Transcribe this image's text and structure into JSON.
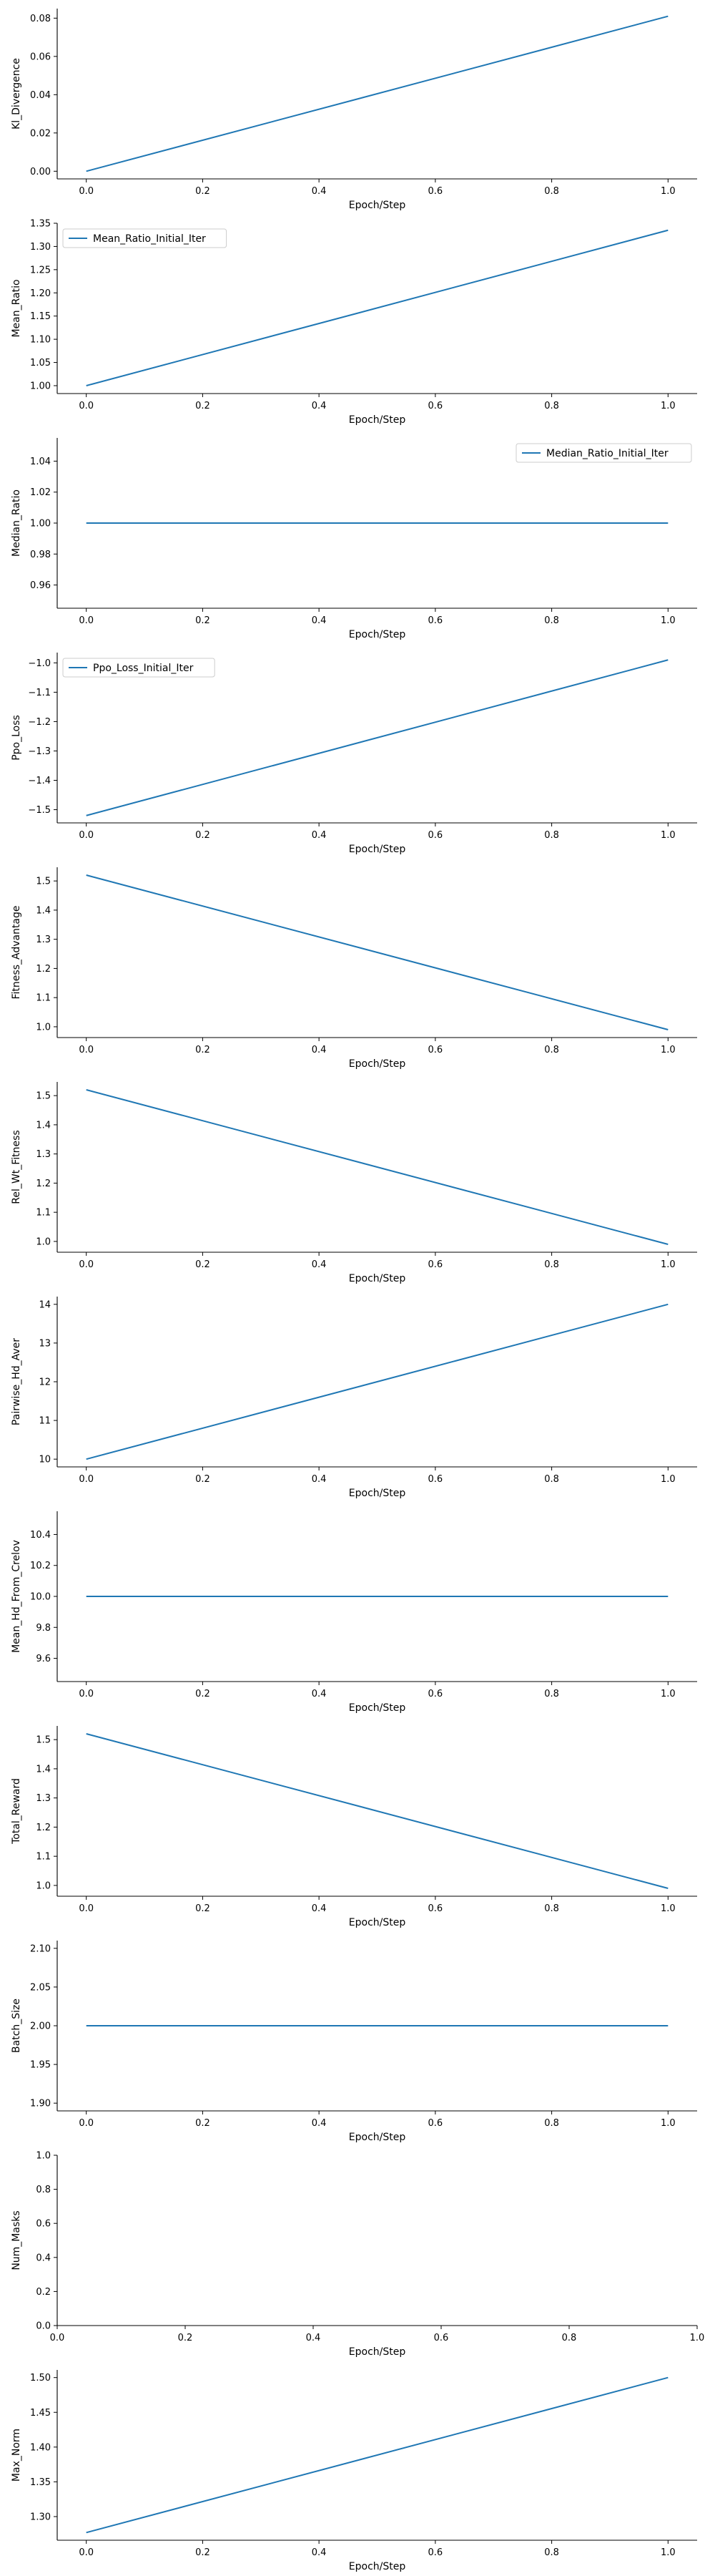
{
  "colors": {
    "line": "#1f77b4",
    "axis": "#000000",
    "background": "#ffffff",
    "legend_border": "#cccccc"
  },
  "chart_data": [
    {
      "type": "line",
      "xlabel": "Epoch/Step",
      "ylabel": "Kl_Divergence",
      "xlim": [
        -0.05,
        1.05
      ],
      "ylim": [
        -0.004,
        0.085
      ],
      "xticks": [
        0.0,
        0.2,
        0.4,
        0.6,
        0.8,
        1.0
      ],
      "xtick_labels": [
        "0.0",
        "0.2",
        "0.4",
        "0.6",
        "0.8",
        "1.0"
      ],
      "yticks": [
        0.0,
        0.02,
        0.04,
        0.06,
        0.08
      ],
      "ytick_labels": [
        "0.00",
        "0.02",
        "0.04",
        "0.06",
        "0.08"
      ],
      "series": [
        {
          "x": [
            0.0,
            1.0
          ],
          "y": [
            0.0,
            0.081
          ]
        }
      ],
      "legend": null
    },
    {
      "type": "line",
      "xlabel": "Epoch/Step",
      "ylabel": "Mean_Ratio",
      "xlim": [
        -0.05,
        1.05
      ],
      "ylim": [
        0.983,
        1.35
      ],
      "xticks": [
        0.0,
        0.2,
        0.4,
        0.6,
        0.8,
        1.0
      ],
      "xtick_labels": [
        "0.0",
        "0.2",
        "0.4",
        "0.6",
        "0.8",
        "1.0"
      ],
      "yticks": [
        1.0,
        1.05,
        1.1,
        1.15,
        1.2,
        1.25,
        1.3,
        1.35
      ],
      "ytick_labels": [
        "1.00",
        "1.05",
        "1.10",
        "1.15",
        "1.20",
        "1.25",
        "1.30",
        "1.35"
      ],
      "series": [
        {
          "name": "Mean_Ratio_Initial_Iter",
          "x": [
            0.0,
            1.0
          ],
          "y": [
            1.0,
            1.335
          ]
        }
      ],
      "legend": "upper left"
    },
    {
      "type": "line",
      "xlabel": "Epoch/Step",
      "ylabel": "Median_Ratio",
      "xlim": [
        -0.05,
        1.05
      ],
      "ylim": [
        0.945,
        1.055
      ],
      "xticks": [
        0.0,
        0.2,
        0.4,
        0.6,
        0.8,
        1.0
      ],
      "xtick_labels": [
        "0.0",
        "0.2",
        "0.4",
        "0.6",
        "0.8",
        "1.0"
      ],
      "yticks": [
        0.96,
        0.98,
        1.0,
        1.02,
        1.04
      ],
      "ytick_labels": [
        "0.96",
        "0.98",
        "1.00",
        "1.02",
        "1.04"
      ],
      "series": [
        {
          "name": "Median_Ratio_Initial_Iter",
          "x": [
            0.0,
            1.0
          ],
          "y": [
            1.0,
            1.0
          ]
        }
      ],
      "legend": "upper right"
    },
    {
      "type": "line",
      "xlabel": "Epoch/Step",
      "ylabel": "Ppo_Loss",
      "xlim": [
        -0.05,
        1.05
      ],
      "ylim": [
        -1.545,
        -0.965
      ],
      "xticks": [
        0.0,
        0.2,
        0.4,
        0.6,
        0.8,
        1.0
      ],
      "xtick_labels": [
        "0.0",
        "0.2",
        "0.4",
        "0.6",
        "0.8",
        "1.0"
      ],
      "yticks": [
        -1.5,
        -1.4,
        -1.3,
        -1.2,
        -1.1,
        -1.0
      ],
      "ytick_labels": [
        "−1.5",
        "−1.4",
        "−1.3",
        "−1.2",
        "−1.1",
        "−1.0"
      ],
      "series": [
        {
          "name": "Ppo_Loss_Initial_Iter",
          "x": [
            0.0,
            1.0
          ],
          "y": [
            -1.52,
            -0.99
          ]
        }
      ],
      "legend": "upper left"
    },
    {
      "type": "line",
      "xlabel": "Epoch/Step",
      "ylabel": "Fitness_Advantage",
      "xlim": [
        -0.05,
        1.05
      ],
      "ylim": [
        0.963,
        1.547
      ],
      "xticks": [
        0.0,
        0.2,
        0.4,
        0.6,
        0.8,
        1.0
      ],
      "xtick_labels": [
        "0.0",
        "0.2",
        "0.4",
        "0.6",
        "0.8",
        "1.0"
      ],
      "yticks": [
        1.0,
        1.1,
        1.2,
        1.3,
        1.4,
        1.5
      ],
      "ytick_labels": [
        "1.0",
        "1.1",
        "1.2",
        "1.3",
        "1.4",
        "1.5"
      ],
      "series": [
        {
          "x": [
            0.0,
            1.0
          ],
          "y": [
            1.52,
            0.99
          ]
        }
      ],
      "legend": null
    },
    {
      "type": "line",
      "xlabel": "Epoch/Step",
      "ylabel": "Rel_Wt_Fitness",
      "xlim": [
        -0.05,
        1.05
      ],
      "ylim": [
        0.963,
        1.547
      ],
      "xticks": [
        0.0,
        0.2,
        0.4,
        0.6,
        0.8,
        1.0
      ],
      "xtick_labels": [
        "0.0",
        "0.2",
        "0.4",
        "0.6",
        "0.8",
        "1.0"
      ],
      "yticks": [
        1.0,
        1.1,
        1.2,
        1.3,
        1.4,
        1.5
      ],
      "ytick_labels": [
        "1.0",
        "1.1",
        "1.2",
        "1.3",
        "1.4",
        "1.5"
      ],
      "series": [
        {
          "x": [
            0.0,
            1.0
          ],
          "y": [
            1.52,
            0.99
          ]
        }
      ],
      "legend": null
    },
    {
      "type": "line",
      "xlabel": "Epoch/Step",
      "ylabel": "Pairwise_Hd_Aver",
      "xlim": [
        -0.05,
        1.05
      ],
      "ylim": [
        9.8,
        14.2
      ],
      "xticks": [
        0.0,
        0.2,
        0.4,
        0.6,
        0.8,
        1.0
      ],
      "xtick_labels": [
        "0.0",
        "0.2",
        "0.4",
        "0.6",
        "0.8",
        "1.0"
      ],
      "yticks": [
        10,
        11,
        12,
        13,
        14
      ],
      "ytick_labels": [
        "10",
        "11",
        "12",
        "13",
        "14"
      ],
      "series": [
        {
          "x": [
            0.0,
            1.0
          ],
          "y": [
            10.0,
            14.0
          ]
        }
      ],
      "legend": null
    },
    {
      "type": "line",
      "xlabel": "Epoch/Step",
      "ylabel": "Mean_Hd_From_Crelov",
      "xlim": [
        -0.05,
        1.05
      ],
      "ylim": [
        9.45,
        10.55
      ],
      "xticks": [
        0.0,
        0.2,
        0.4,
        0.6,
        0.8,
        1.0
      ],
      "xtick_labels": [
        "0.0",
        "0.2",
        "0.4",
        "0.6",
        "0.8",
        "1.0"
      ],
      "yticks": [
        9.6,
        9.8,
        10.0,
        10.2,
        10.4
      ],
      "ytick_labels": [
        "9.6",
        "9.8",
        "10.0",
        "10.2",
        "10.4"
      ],
      "series": [
        {
          "x": [
            0.0,
            1.0
          ],
          "y": [
            10.0,
            10.0
          ]
        }
      ],
      "legend": null
    },
    {
      "type": "line",
      "xlabel": "Epoch/Step",
      "ylabel": "Total_Reward",
      "xlim": [
        -0.05,
        1.05
      ],
      "ylim": [
        0.963,
        1.547
      ],
      "xticks": [
        0.0,
        0.2,
        0.4,
        0.6,
        0.8,
        1.0
      ],
      "xtick_labels": [
        "0.0",
        "0.2",
        "0.4",
        "0.6",
        "0.8",
        "1.0"
      ],
      "yticks": [
        1.0,
        1.1,
        1.2,
        1.3,
        1.4,
        1.5
      ],
      "ytick_labels": [
        "1.0",
        "1.1",
        "1.2",
        "1.3",
        "1.4",
        "1.5"
      ],
      "series": [
        {
          "x": [
            0.0,
            1.0
          ],
          "y": [
            1.52,
            0.99
          ]
        }
      ],
      "legend": null
    },
    {
      "type": "line",
      "xlabel": "Epoch/Step",
      "ylabel": "Batch_Size",
      "xlim": [
        -0.05,
        1.05
      ],
      "ylim": [
        1.89,
        2.11
      ],
      "xticks": [
        0.0,
        0.2,
        0.4,
        0.6,
        0.8,
        1.0
      ],
      "xtick_labels": [
        "0.0",
        "0.2",
        "0.4",
        "0.6",
        "0.8",
        "1.0"
      ],
      "yticks": [
        1.9,
        1.95,
        2.0,
        2.05,
        2.1
      ],
      "ytick_labels": [
        "1.90",
        "1.95",
        "2.00",
        "2.05",
        "2.10"
      ],
      "series": [
        {
          "x": [
            0.0,
            1.0
          ],
          "y": [
            2.0,
            2.0
          ]
        }
      ],
      "legend": null
    },
    {
      "type": "line",
      "xlabel": "Epoch/Step",
      "ylabel": "Num_Masks",
      "xlim": [
        0.0,
        1.0
      ],
      "ylim": [
        0.0,
        1.0
      ],
      "xticks": [
        0.0,
        0.2,
        0.4,
        0.6,
        0.8,
        1.0
      ],
      "xtick_labels": [
        "0.0",
        "0.2",
        "0.4",
        "0.6",
        "0.8",
        "1.0"
      ],
      "yticks": [
        0.0,
        0.2,
        0.4,
        0.6,
        0.8,
        1.0
      ],
      "ytick_labels": [
        "0.0",
        "0.2",
        "0.4",
        "0.6",
        "0.8",
        "1.0"
      ],
      "series": [],
      "legend": null
    },
    {
      "type": "line",
      "xlabel": "Epoch/Step",
      "ylabel": "Max_Norm",
      "xlim": [
        -0.05,
        1.05
      ],
      "ylim": [
        1.266,
        1.511
      ],
      "xticks": [
        0.0,
        0.2,
        0.4,
        0.6,
        0.8,
        1.0
      ],
      "xtick_labels": [
        "0.0",
        "0.2",
        "0.4",
        "0.6",
        "0.8",
        "1.0"
      ],
      "yticks": [
        1.3,
        1.35,
        1.4,
        1.45,
        1.5
      ],
      "ytick_labels": [
        "1.30",
        "1.35",
        "1.40",
        "1.45",
        "1.50"
      ],
      "series": [
        {
          "x": [
            0.0,
            1.0
          ],
          "y": [
            1.277,
            1.5
          ]
        }
      ],
      "legend": null
    }
  ]
}
